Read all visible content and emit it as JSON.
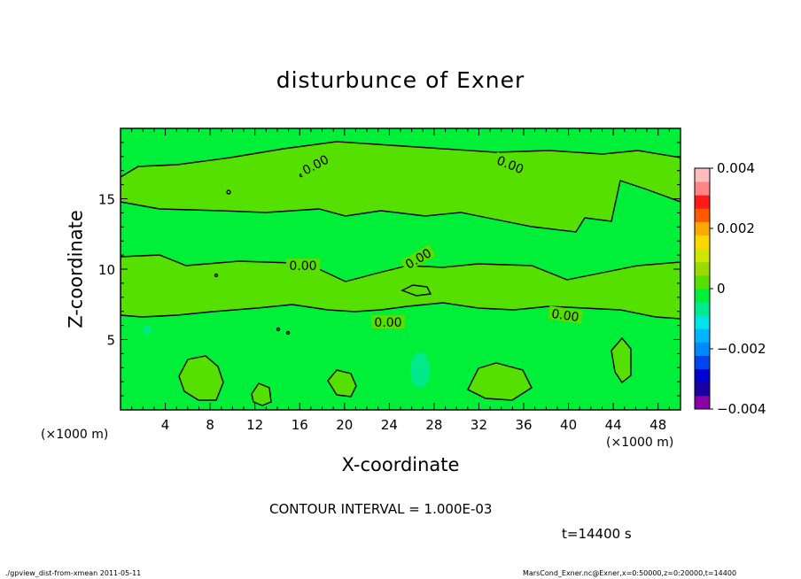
{
  "chart_data": {
    "type": "heatmap",
    "title": "disturbunce of Exner",
    "xlabel": "X-coordinate",
    "ylabel": "Z-coordinate",
    "x_unit": "(×1000 m)",
    "y_unit": "(×1000 m)",
    "xlim": [
      0,
      50
    ],
    "ylim": [
      0,
      20
    ],
    "x_ticks": [
      4,
      8,
      12,
      16,
      20,
      24,
      28,
      32,
      36,
      40,
      44,
      48
    ],
    "y_ticks": [
      5,
      10,
      15
    ],
    "contour_label": "0.00",
    "colorbar": {
      "range": [
        -0.004,
        0.004
      ],
      "tick_values": [
        -0.004,
        -0.002,
        0,
        0.002,
        0.004
      ],
      "tick_labels": [
        "−0.004",
        "−0.002",
        "0",
        "0.002",
        "0.004"
      ],
      "levels": [
        -0.004,
        -0.0035,
        -0.003,
        -0.0025,
        -0.002,
        -0.0015,
        -0.001,
        -0.0005,
        0,
        0.0005,
        0.001,
        0.0015,
        0.002,
        0.0025,
        0.003,
        0.0035,
        0.004
      ],
      "colors": [
        "#8a00a8",
        "#1a00a0",
        "#0000d2",
        "#0044f0",
        "#0088ff",
        "#00b4ff",
        "#00e4e8",
        "#00ea8c",
        "#00f03a",
        "#55e000",
        "#99dc00",
        "#cce800",
        "#ffd700",
        "#ffaa00",
        "#ff5a00",
        "#ff1a1a",
        "#ff8484",
        "#ffbcbc"
      ]
    },
    "field_regions": [
      {
        "sign": "negative",
        "level": "-0.0005 to 0",
        "color": "#00f03a"
      },
      {
        "sign": "positive",
        "level": "0 to 0.0005",
        "color": "#55e000"
      }
    ],
    "contour_interval": "CONTOUR INTERVAL = 1.000E-03",
    "time": "t=14400 s"
  },
  "footer": {
    "left": "./gpview_dist-from-xmean  2011-05-11",
    "right": "MarsCond_Exner.nc@Exner,x=0:50000,z=0:20000,t=14400"
  }
}
